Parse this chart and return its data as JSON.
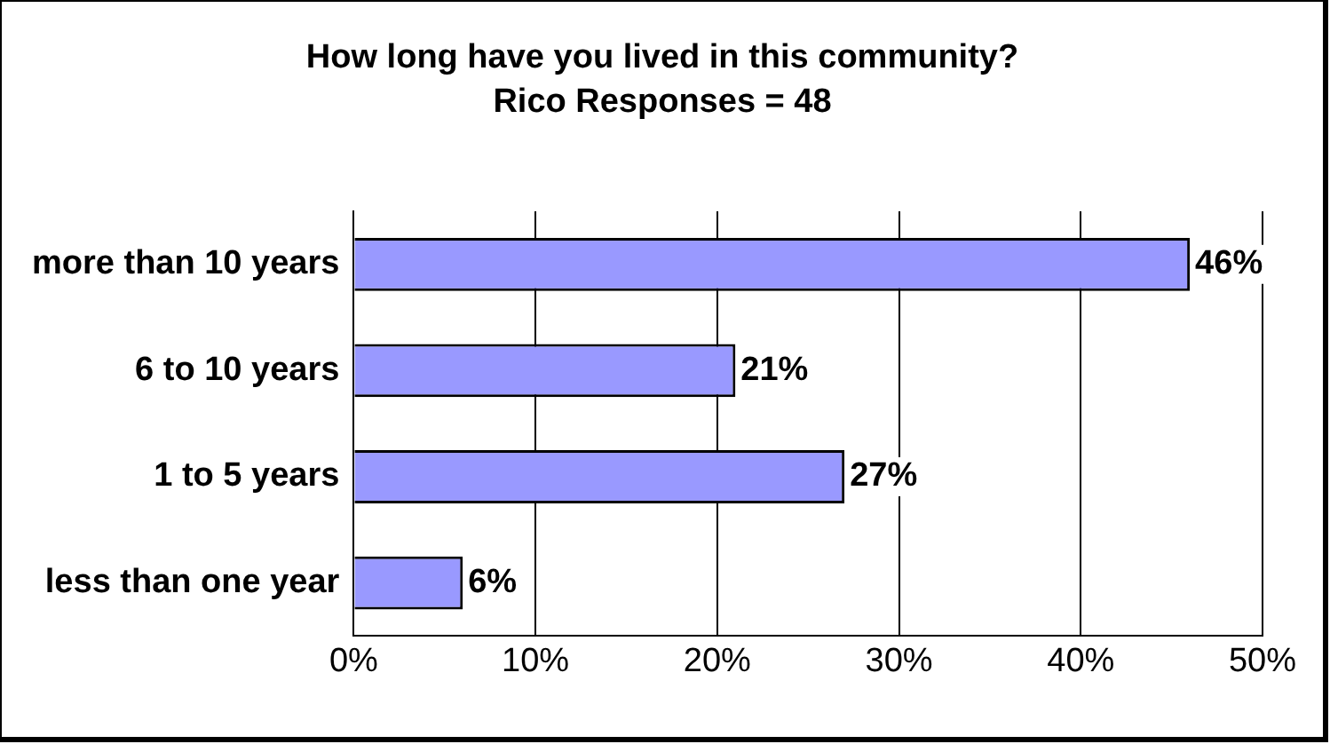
{
  "chart_data": {
    "type": "bar",
    "orientation": "horizontal",
    "title": "How long have you lived in this community?",
    "subtitle": "Rico Responses = 48",
    "categories": [
      "more than 10 years",
      "6 to 10 years",
      "1 to 5 years",
      "less than one year"
    ],
    "values": [
      46,
      21,
      27,
      6
    ],
    "color": "#9999ff",
    "value_labels": [
      "46%",
      "21%",
      "27%",
      "6%"
    ],
    "xlim": [
      0,
      50
    ],
    "xticks": [
      {
        "value": 0,
        "label": "0%"
      },
      {
        "value": 10,
        "label": "10%"
      },
      {
        "value": 20,
        "label": "20%"
      },
      {
        "value": 30,
        "label": "30%"
      },
      {
        "value": 40,
        "label": "40%"
      },
      {
        "value": 50,
        "label": "50%"
      }
    ],
    "grid": "x",
    "legend": false
  }
}
